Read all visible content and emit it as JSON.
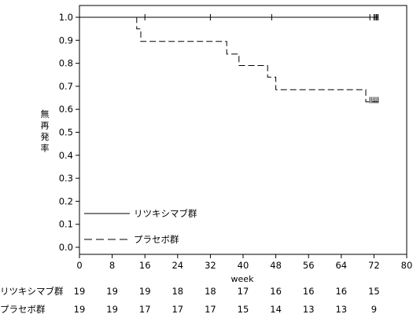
{
  "chart_data": {
    "type": "line",
    "title": "",
    "xlabel": "week",
    "ylabel": "無再発率",
    "xlim": [
      0,
      80
    ],
    "ylim": [
      0,
      1.0
    ],
    "xticks": [
      0,
      8,
      16,
      24,
      32,
      40,
      48,
      56,
      64,
      72,
      80
    ],
    "yticks": [
      "0.0",
      "0.1",
      "0.2",
      "0.3",
      "0.4",
      "0.5",
      "0.6",
      "0.7",
      "0.8",
      "0.9",
      "1.0"
    ],
    "grid": false,
    "legend_position": "bottom-left",
    "series": [
      {
        "name": "リツキシマブ群",
        "style": "solid",
        "step_points": [
          [
            0,
            1.0
          ],
          [
            73,
            1.0
          ]
        ],
        "censor_x": [
          16,
          32,
          47,
          71,
          72,
          72.3,
          72.6,
          72.9,
          73
        ],
        "censor_y": 1.0
      },
      {
        "name": "プラセボ群",
        "style": "dashed",
        "step_points": [
          [
            0,
            1.0
          ],
          [
            14,
            1.0
          ],
          [
            14,
            0.95
          ],
          [
            15,
            0.95
          ],
          [
            15,
            0.895
          ],
          [
            36,
            0.895
          ],
          [
            36,
            0.84
          ],
          [
            39,
            0.84
          ],
          [
            39,
            0.79
          ],
          [
            46,
            0.79
          ],
          [
            46,
            0.74
          ],
          [
            48,
            0.74
          ],
          [
            48,
            0.685
          ],
          [
            70,
            0.685
          ],
          [
            70,
            0.632
          ],
          [
            73,
            0.632
          ]
        ],
        "censor_x": [
          71,
          71.5,
          72,
          72.5,
          73
        ],
        "censor_y": 0.64
      }
    ],
    "risk_table": {
      "timepoints": [
        0,
        8,
        16,
        24,
        32,
        40,
        48,
        56,
        64,
        72
      ],
      "rows": [
        {
          "label": "リツキシマブ群",
          "values": [
            "19",
            "19",
            "19",
            "18",
            "18",
            "17",
            "16",
            "16",
            "16",
            "15"
          ]
        },
        {
          "label": "プラセボ群",
          "values": [
            "19",
            "19",
            "17",
            "17",
            "17",
            "15",
            "14",
            "13",
            "13",
            "9"
          ]
        }
      ]
    }
  }
}
